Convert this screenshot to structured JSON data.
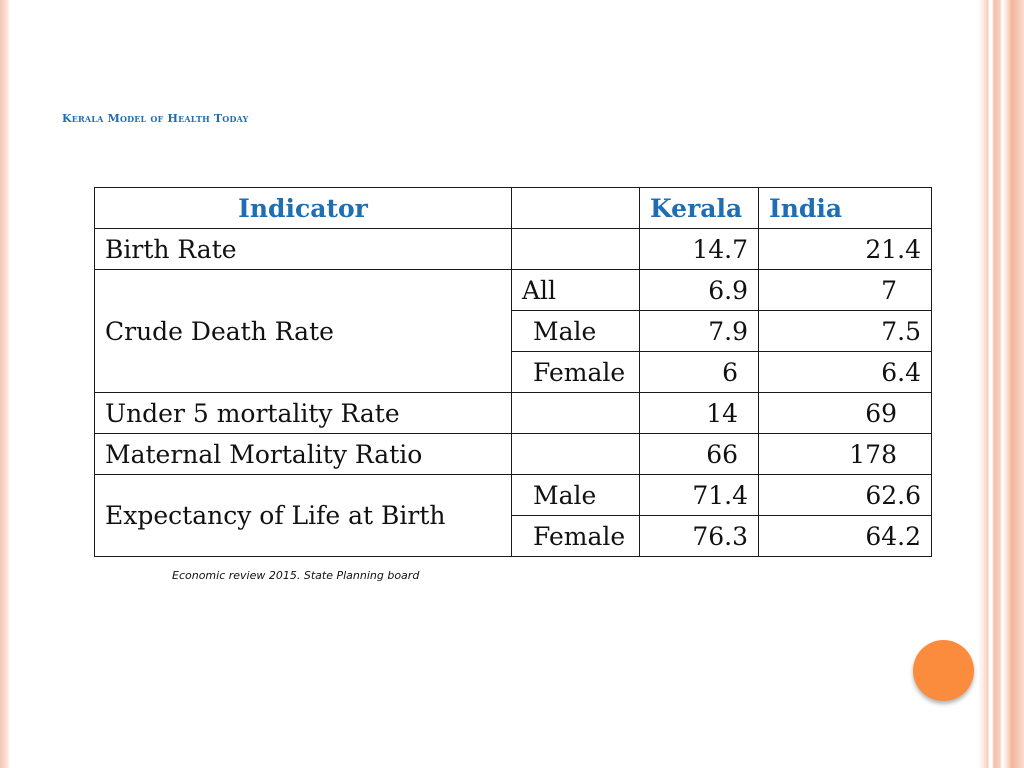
{
  "slide": {
    "title": "Kerala Model of Health Today",
    "source": "Economic review 2015. State Planning board",
    "accent_color": "#fb8c3e",
    "header_color": "#1f6db3"
  },
  "table": {
    "headers": {
      "indicator": "Indicator",
      "sub": "",
      "kerala": "Kerala",
      "india": "India"
    },
    "birth_rate": {
      "label": "Birth Rate",
      "kerala": "14.7",
      "india": "21.4"
    },
    "crude_death": {
      "label": "Crude Death Rate",
      "all": {
        "label": "All",
        "kerala": "6.9",
        "india": "7"
      },
      "male": {
        "label": "Male",
        "kerala": "7.9",
        "india": "7.5"
      },
      "female": {
        "label": "Female",
        "kerala": "6",
        "india": "6.4"
      }
    },
    "under5": {
      "label": "Under 5 mortality Rate",
      "kerala": "14",
      "india": "69"
    },
    "maternal": {
      "label": "Maternal Mortality Ratio",
      "kerala": "66",
      "india": "178"
    },
    "life_exp": {
      "label": "Expectancy of Life at Birth",
      "male": {
        "label": "Male",
        "kerala": "71.4",
        "india": "62.6"
      },
      "female": {
        "label": "Female",
        "kerala": "76.3",
        "india": "64.2"
      }
    }
  }
}
